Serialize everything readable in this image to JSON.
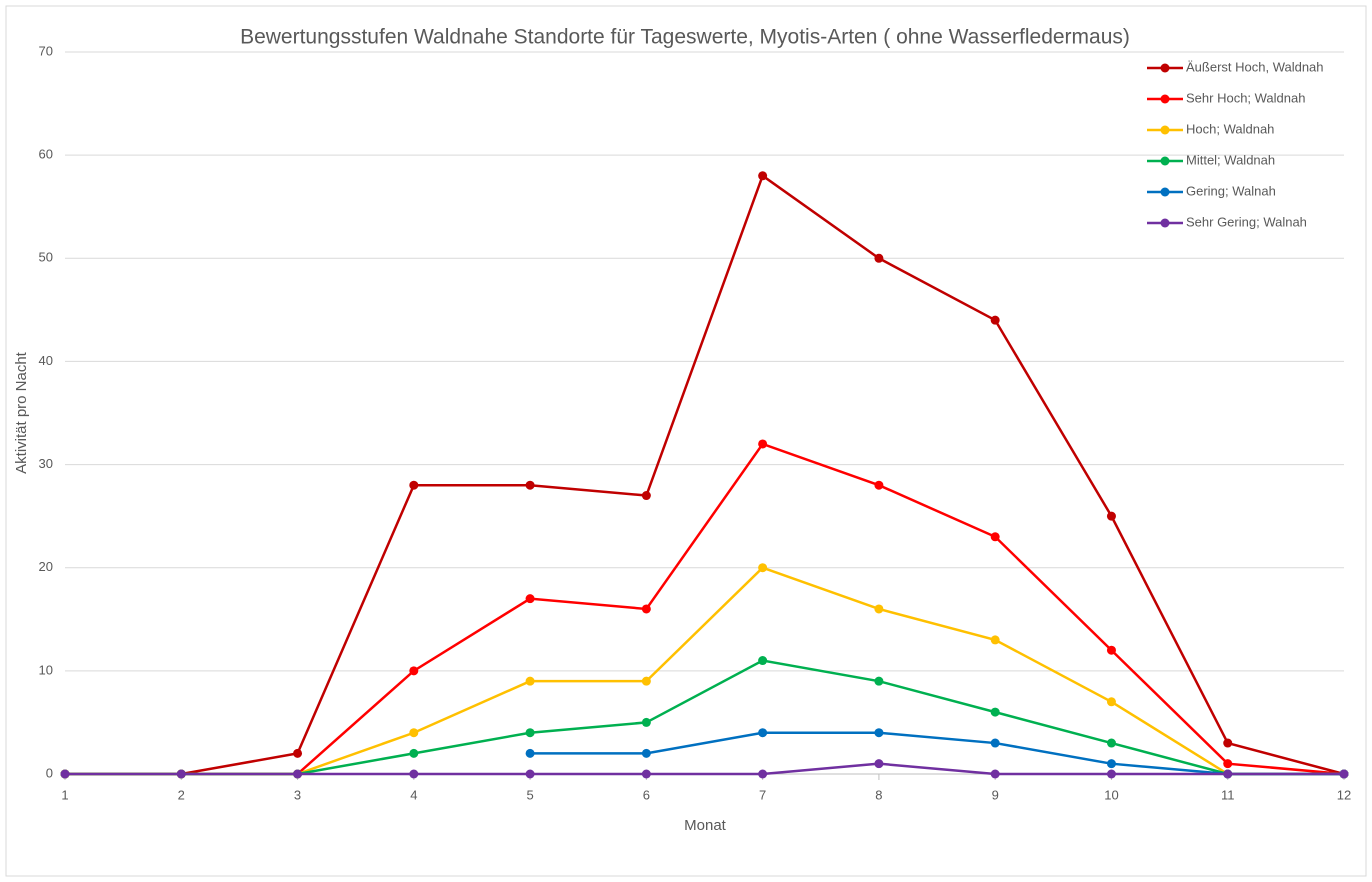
{
  "chart_data": {
    "type": "line",
    "title": "Bewertungsstufen Waldnahe Standorte für Tageswerte, Myotis-Arten ( ohne Wasserfledermaus)",
    "x_label": "Monat",
    "y_label": "Aktivität pro Nacht",
    "x": [
      1,
      2,
      3,
      4,
      5,
      6,
      7,
      8,
      9,
      10,
      11,
      12
    ],
    "series": [
      {
        "name": "Äußerst Hoch, Waldnah",
        "color": "#C00000",
        "values": [
          0,
          0,
          2,
          28,
          28,
          27,
          58,
          50,
          44,
          25,
          3,
          0
        ]
      },
      {
        "name": "Sehr Hoch; Waldnah",
        "color": "#FF0000",
        "values": [
          0,
          0,
          0,
          10,
          17,
          16,
          32,
          28,
          23,
          12,
          1,
          0
        ]
      },
      {
        "name": "Hoch; Waldnah",
        "color": "#FFC000",
        "values": [
          0,
          0,
          0,
          4,
          9,
          9,
          20,
          16,
          13,
          7,
          0,
          0
        ]
      },
      {
        "name": "Mittel; Waldnah",
        "color": "#00B050",
        "values": [
          0,
          0,
          0,
          2,
          4,
          5,
          11,
          9,
          6,
          3,
          0,
          0
        ]
      },
      {
        "name": "Gering; Walnah",
        "color": "#0070C0",
        "values": [
          null,
          null,
          null,
          null,
          2,
          2,
          4,
          4,
          3,
          1,
          0,
          0
        ]
      },
      {
        "name": "Sehr Gering; Walnah",
        "color": "#7030A0",
        "values": [
          0,
          0,
          0,
          0,
          0,
          0,
          0,
          1,
          0,
          0,
          0,
          0
        ]
      }
    ],
    "xlim": [
      1,
      12
    ],
    "xticks": [
      1,
      2,
      3,
      4,
      5,
      6,
      7,
      8,
      9,
      10,
      11,
      12
    ],
    "ylim": [
      0,
      70
    ],
    "yticks": [
      0,
      10,
      20,
      30,
      40,
      50,
      60,
      70
    ],
    "grid": true,
    "legend": "top-right"
  }
}
